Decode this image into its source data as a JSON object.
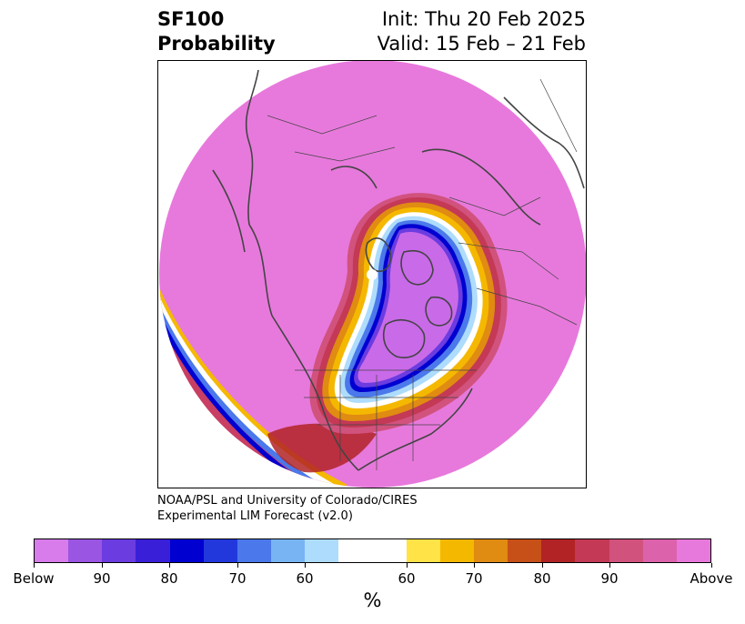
{
  "header": {
    "variable": "SF100",
    "product": "Probability",
    "init": "Init: Thu 20 Feb 2025",
    "valid": "Valid: 15 Feb – 21 Feb"
  },
  "credit": {
    "line1": "NOAA/PSL and University of Colorado/CIRES",
    "line2": "Experimental LIM Forecast (v2.0)"
  },
  "map": {
    "projection": "north-polar",
    "colors": {
      "ocean_disk": "#e779dc",
      "below_core": "#c96ae9",
      "coastline": "#444444"
    }
  },
  "colorbar": {
    "unit": "%",
    "colors": [
      "#d77cea",
      "#9a56e2",
      "#6b3ce0",
      "#3a1fd8",
      "#0000d0",
      "#2338dc",
      "#4b78ea",
      "#78b4f4",
      "#aedcfc",
      "#ffffff",
      "#ffe347",
      "#f5b800",
      "#e08b12",
      "#c75018",
      "#b22326",
      "#c43955",
      "#d1527d",
      "#dc62ab",
      "#e779dc"
    ],
    "tick_labels": [
      "Below",
      "90",
      "80",
      "70",
      "60",
      "60",
      "70",
      "80",
      "90",
      "Above"
    ]
  }
}
